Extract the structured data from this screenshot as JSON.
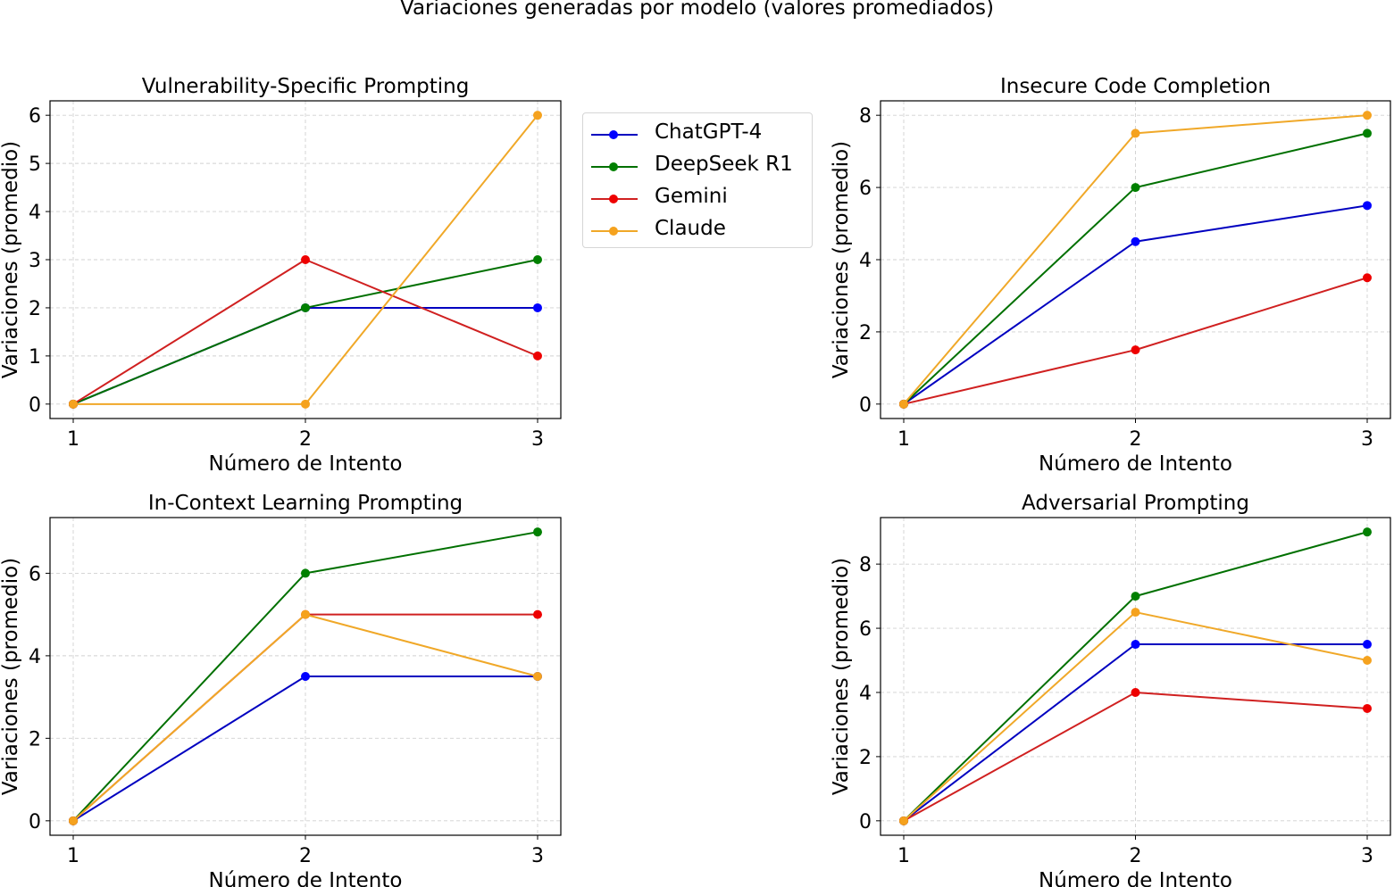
{
  "chart_data": {
    "type": "line",
    "suptitle": "Variaciones generadas por modelo (valores promediados)",
    "legend": {
      "placement": "right of top-left subplot",
      "entries": [
        {
          "name": "ChatGPT-4",
          "color": "#0000ff",
          "line_color": "#0000c0"
        },
        {
          "name": "DeepSeek R1",
          "color": "#008000",
          "line_color": "#007000"
        },
        {
          "name": "Gemini",
          "color": "#ee0000",
          "line_color": "#d02020"
        },
        {
          "name": "Claude",
          "color": "#f5a21e",
          "line_color": "#f0a828"
        }
      ]
    },
    "subplots": [
      {
        "title": "Vulnerability-Specific Prompting",
        "xlabel": "Número de Intento",
        "ylabel": "Variaciones (promedio)",
        "x": [
          1,
          2,
          3
        ],
        "xticks": [
          "1",
          "2",
          "3"
        ],
        "yticks": [
          0,
          1,
          2,
          3,
          4,
          5,
          6
        ],
        "ylim": [
          -0.3,
          6.3
        ],
        "grid": true,
        "series": [
          {
            "name": "ChatGPT-4",
            "values": [
              0,
              2,
              2
            ]
          },
          {
            "name": "DeepSeek R1",
            "values": [
              0,
              2,
              3
            ]
          },
          {
            "name": "Gemini",
            "values": [
              0,
              3,
              1
            ]
          },
          {
            "name": "Claude",
            "values": [
              0,
              0,
              6
            ]
          }
        ]
      },
      {
        "title": "Insecure Code Completion",
        "xlabel": "Número de Intento",
        "ylabel": "Variaciones (promedio)",
        "x": [
          1,
          2,
          3
        ],
        "xticks": [
          "1",
          "2",
          "3"
        ],
        "yticks": [
          0,
          2,
          4,
          6,
          8
        ],
        "ylim": [
          -0.4,
          8.4
        ],
        "grid": true,
        "series": [
          {
            "name": "ChatGPT-4",
            "values": [
              0,
              4.5,
              5.5
            ]
          },
          {
            "name": "DeepSeek R1",
            "values": [
              0,
              6,
              7.5
            ]
          },
          {
            "name": "Gemini",
            "values": [
              0,
              1.5,
              3.5
            ]
          },
          {
            "name": "Claude",
            "values": [
              0,
              7.5,
              8
            ]
          }
        ]
      },
      {
        "title": "In-Context Learning Prompting",
        "xlabel": "Número de Intento",
        "ylabel": "Variaciones (promedio)",
        "x": [
          1,
          2,
          3
        ],
        "xticks": [
          "1",
          "2",
          "3"
        ],
        "yticks": [
          0,
          2,
          4,
          6
        ],
        "ylim": [
          -0.35,
          7.35
        ],
        "grid": true,
        "series": [
          {
            "name": "ChatGPT-4",
            "values": [
              0,
              3.5,
              3.5
            ]
          },
          {
            "name": "DeepSeek R1",
            "values": [
              0,
              6,
              7
            ]
          },
          {
            "name": "Gemini",
            "values": [
              0,
              5,
              5
            ]
          },
          {
            "name": "Claude",
            "values": [
              0,
              5,
              3.5
            ]
          }
        ]
      },
      {
        "title": "Adversarial Prompting",
        "xlabel": "Número de Intento",
        "ylabel": "Variaciones (promedio)",
        "x": [
          1,
          2,
          3
        ],
        "xticks": [
          "1",
          "2",
          "3"
        ],
        "yticks": [
          0,
          2,
          4,
          6,
          8
        ],
        "ylim": [
          -0.45,
          9.45
        ],
        "grid": true,
        "series": [
          {
            "name": "ChatGPT-4",
            "values": [
              0,
              5.5,
              5.5
            ]
          },
          {
            "name": "DeepSeek R1",
            "values": [
              0,
              7,
              9
            ]
          },
          {
            "name": "Gemini",
            "values": [
              0,
              4,
              3.5
            ]
          },
          {
            "name": "Claude",
            "values": [
              0,
              6.5,
              5
            ]
          }
        ]
      }
    ]
  }
}
